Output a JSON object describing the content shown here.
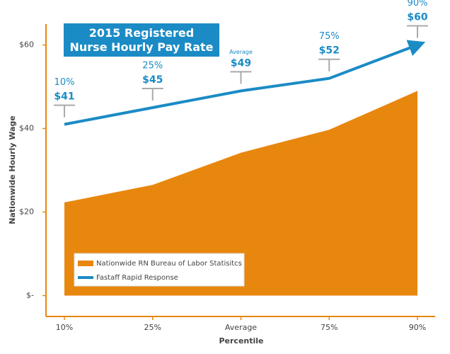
{
  "chart_data": {
    "type": "area-line",
    "title": "2015 Registered Nurse Hourly Pay Rate",
    "x_label": "Percentile",
    "y_label": "Nationwide Hourly Wage",
    "categories": [
      "10%",
      "25%",
      "Average",
      "75%",
      "90%"
    ],
    "series": [
      {
        "name": "Nationwide RN Bureau of Labor Statisitcs",
        "type": "area",
        "color": "#e8870e",
        "values": [
          22.3,
          26.5,
          34.2,
          39.7,
          49
        ]
      },
      {
        "name": "Fastaff Rapid Response",
        "type": "line",
        "color": "#1b8bc5",
        "values": [
          41,
          45,
          49,
          52,
          60
        ],
        "value_labels": [
          "$41",
          "$45",
          "$49",
          "$52",
          "$60"
        ]
      }
    ],
    "ylim": [
      -5,
      65
    ],
    "yticks": [
      {
        "value": 0,
        "label": "$-"
      },
      {
        "value": 20,
        "label": "$20"
      },
      {
        "value": 40,
        "label": "$40"
      },
      {
        "value": 60,
        "label": "$60"
      }
    ],
    "axis_color": "#e8870e"
  }
}
